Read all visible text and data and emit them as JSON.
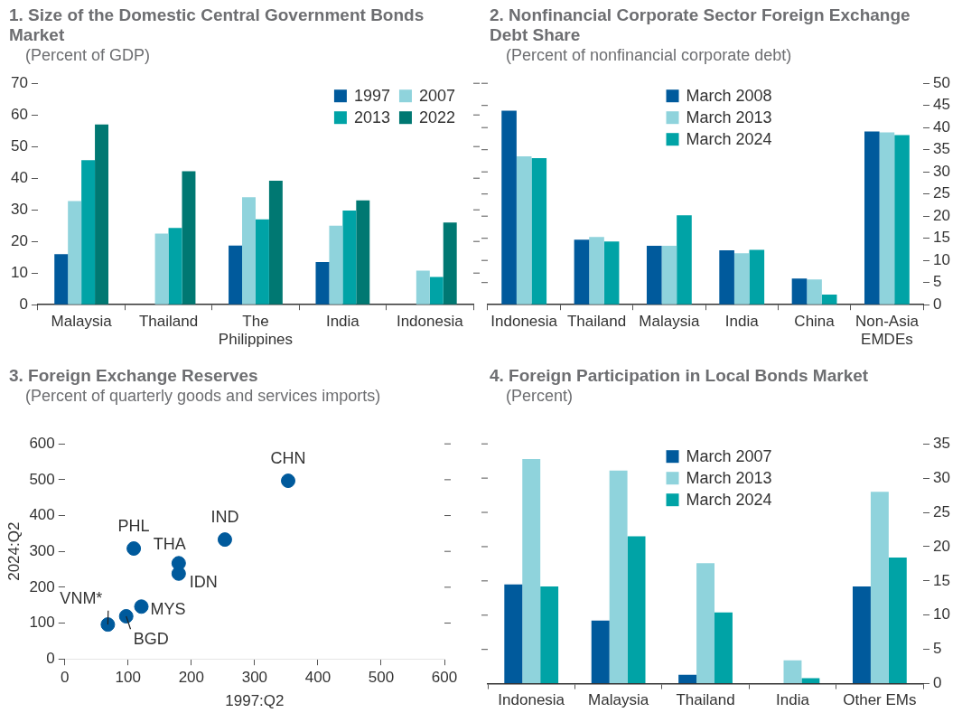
{
  "chart_data": [
    {
      "type": "bar",
      "title": "1. Size of the Domestic Central Government Bonds Market",
      "subtitle": "(Percent of GDP)",
      "categories": [
        "Malaysia",
        "Thailand",
        "The Philippines",
        "India",
        "Indonesia"
      ],
      "series": [
        {
          "name": "1997",
          "color": "#005a9c",
          "values": [
            16,
            null,
            18.7,
            13.5,
            null
          ]
        },
        {
          "name": "2007",
          "color": "#8fd3dc",
          "values": [
            32.8,
            22.5,
            34,
            25,
            10.8
          ]
        },
        {
          "name": "2013",
          "color": "#00a3a6",
          "values": [
            45.7,
            24.3,
            27,
            29.8,
            8.8
          ]
        },
        {
          "name": "2022",
          "color": "#007872",
          "values": [
            57,
            42.2,
            39.2,
            33,
            26
          ]
        }
      ],
      "ylim": [
        0,
        70
      ],
      "yticks": [
        0,
        10,
        20,
        30,
        40,
        50,
        60,
        70
      ],
      "grid": false,
      "legend": "top right"
    },
    {
      "type": "bar",
      "title": "2. Nonfinancial Corporate Sector Foreign Exchange Debt Share",
      "subtitle": "(Percent of nonfinancial corporate debt)",
      "categories": [
        "Indonesia",
        "Thailand",
        "Malaysia",
        "India",
        "China",
        "Non-Asia EMDEs"
      ],
      "series": [
        {
          "name": "March 2008",
          "color": "#005a9c",
          "axis": "y2",
          "values": [
            43.8,
            14.7,
            13.3,
            12.3,
            5.9,
            39.1
          ]
        },
        {
          "name": "March 2013",
          "color": "#8fd3dc",
          "axis": "y2",
          "values": [
            33.5,
            15.3,
            13.3,
            11.6,
            5.7,
            38.9
          ]
        },
        {
          "name": "March 2024",
          "color": "#00a3a6",
          "axis": "y2",
          "values": [
            33.1,
            14.3,
            20.2,
            12.4,
            2.3,
            38.3
          ]
        }
      ],
      "y2lim": [
        0,
        50
      ],
      "y2ticks": [
        0,
        5,
        10,
        15,
        20,
        25,
        30,
        35,
        40,
        45,
        50
      ],
      "grid": false,
      "legend": "top"
    },
    {
      "type": "scatter",
      "title": "3. Foreign Exchange Reserves",
      "subtitle": "(Percent of quarterly goods and services imports)",
      "xlabel": "1997:Q2",
      "ylabel": "2024:Q2",
      "series": [
        {
          "color": "#005a9c",
          "x": [
            353,
            253,
            109,
            180,
            180,
            121,
            97,
            68
          ],
          "values": [
            497,
            333,
            308,
            267,
            238,
            146,
            119,
            96
          ]
        }
      ],
      "xlim": [
        0,
        600
      ],
      "xticks": [
        0,
        100,
        200,
        300,
        400,
        500,
        600
      ],
      "ylim": [
        0,
        600
      ],
      "yticks": [
        0,
        100,
        200,
        300,
        400,
        500,
        600
      ],
      "grid": false,
      "marker": "circle",
      "annotations": [
        {
          "text": "CHN",
          "x": 353,
          "y": 497
        },
        {
          "text": "IND",
          "x": 253,
          "y": 333
        },
        {
          "text": "PHL",
          "x": 109,
          "y": 308
        },
        {
          "text": "THA",
          "x": 180,
          "y": 267
        },
        {
          "text": "IDN",
          "x": 180,
          "y": 238
        },
        {
          "text": "MYS",
          "x": 121,
          "y": 146
        },
        {
          "text": "BGD",
          "x": 97,
          "y": 119
        },
        {
          "text": "VNM*",
          "x": 68,
          "y": 96
        }
      ]
    },
    {
      "type": "bar",
      "title": "4. Foreign Participation in Local Bonds Market",
      "subtitle": "(Percent)",
      "categories": [
        "Indonesia",
        "Malaysia",
        "Thailand",
        "India",
        "Other EMs"
      ],
      "series": [
        {
          "name": "March 2007",
          "color": "#005a9c",
          "axis": "y2",
          "values": [
            14.5,
            9.2,
            1.3,
            null,
            14.2
          ]
        },
        {
          "name": "March 2013",
          "color": "#8fd3dc",
          "axis": "y2",
          "values": [
            32.8,
            31.1,
            17.6,
            3.4,
            28
          ]
        },
        {
          "name": "March 2024",
          "color": "#00a3a6",
          "axis": "y2",
          "values": [
            14.2,
            21.5,
            10.4,
            0.8,
            18.4
          ]
        }
      ],
      "y2lim": [
        0,
        35
      ],
      "y2ticks": [
        0,
        5,
        10,
        15,
        20,
        25,
        30,
        35
      ],
      "grid": false,
      "legend": "top"
    }
  ]
}
